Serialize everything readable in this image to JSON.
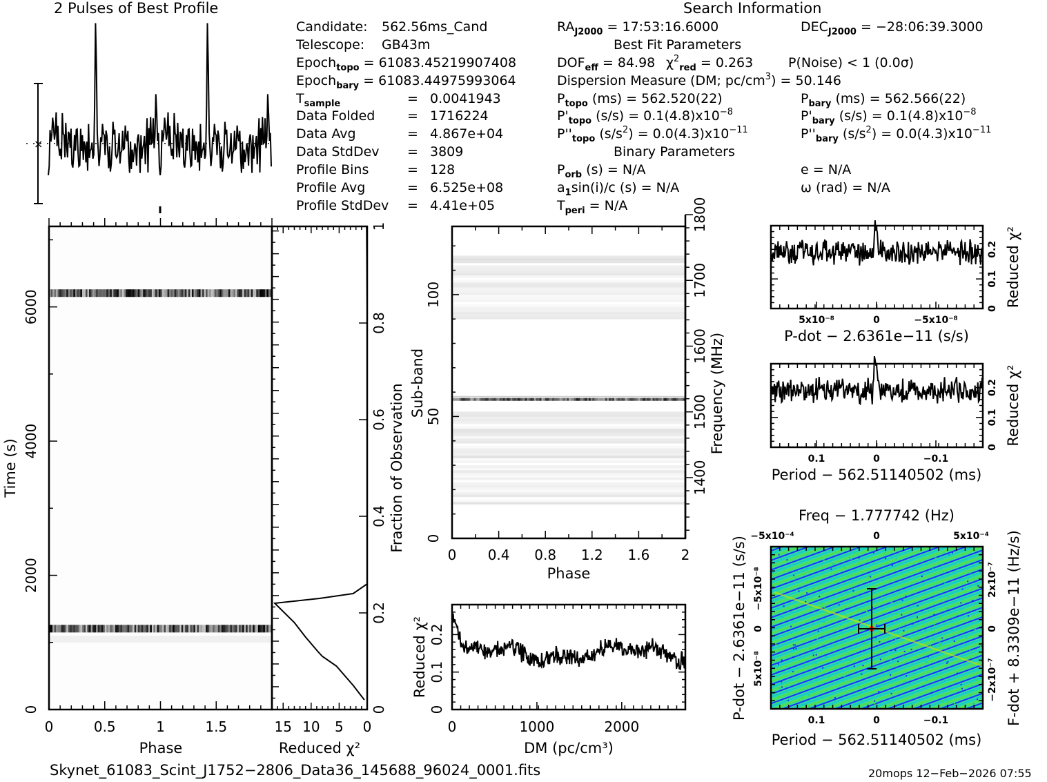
{
  "profile_title": "2 Pulses of Best Profile",
  "search_info_title": "Search Information",
  "info": {
    "candidate": {
      "label": "Candidate:",
      "value": "562.56ms_Cand"
    },
    "telescope": {
      "label": "Telescope:",
      "value": "GB43m"
    },
    "epoch_topo": {
      "label": "Epoch",
      "sub": "topo",
      "value": "= 61083.45219907408"
    },
    "epoch_bary": {
      "label": "Epoch",
      "sub": "bary",
      "value": "= 61083.44975993064"
    },
    "t_sample": {
      "label": "T",
      "sub": "sample",
      "value": "0.0041943"
    },
    "data_folded": {
      "label": "Data Folded",
      "value": "1716224"
    },
    "data_avg": {
      "label": "Data Avg",
      "value": "4.867e+04"
    },
    "data_stddev": {
      "label": "Data StdDev",
      "value": "3809"
    },
    "profile_bins": {
      "label": "Profile Bins",
      "value": "128"
    },
    "profile_avg": {
      "label": "Profile Avg",
      "value": "6.525e+08"
    },
    "profile_stddev": {
      "label": "Profile StdDev",
      "value": "4.41e+05"
    },
    "equals": "="
  },
  "search": {
    "ra": {
      "label": "RA",
      "sub": "J2000",
      "value": "= 17:53:16.6000"
    },
    "dec": {
      "label": "DEC",
      "sub": "J2000",
      "value": "= −28:06:39.3000"
    },
    "best_fit_title": "Best Fit Parameters",
    "dof": {
      "label": "DOF",
      "sub": "eff",
      "value": "= 84.98"
    },
    "chi2": {
      "label": "χ",
      "sup": "2",
      "sub": "red",
      "value": "= 0.263"
    },
    "p_noise": "P(Noise) < 1   (0.0σ)",
    "dm": {
      "label": "Dispersion Measure (DM; pc/cm",
      "sup": "3",
      "value": ") = 50.146"
    },
    "p_topo": {
      "label": "P",
      "sub": "topo",
      "value": "(ms) =  562.520(22)"
    },
    "p_bary": {
      "label": "P",
      "sub": "bary",
      "value": "(ms) =  562.566(22)"
    },
    "pd_topo": {
      "label": "P'",
      "sub": "topo",
      "value": "(s/s) =  0.1(4.8)x10",
      "sup": "−8"
    },
    "pd_bary": {
      "label": "P'",
      "sub": "bary",
      "value": "(s/s) =  0.1(4.8)x10",
      "sup": "−8"
    },
    "pdd_topo": {
      "label": "P''",
      "sub": "topo",
      "value_a": "(s/s",
      "sup_a": "2",
      "value_b": ") = 0.0(4.3)x10",
      "sup": "−11"
    },
    "pdd_bary": {
      "label": "P''",
      "sub": "bary",
      "value_a": "(s/s",
      "sup_a": "2",
      "value_b": ") = 0.0(4.3)x10",
      "sup": "−11"
    },
    "binary_title": "Binary Parameters",
    "p_orb": {
      "label": "P",
      "sub": "orb",
      "value": "(s) = N/A"
    },
    "a1sini": {
      "label": "a",
      "sub": "1",
      "value": "sin(i)/c (s) = N/A"
    },
    "t_peri": {
      "label": "T",
      "sub": "peri",
      "value": "= N/A"
    },
    "ecc": "e = N/A",
    "omega": "ω (rad) = N/A"
  },
  "footer": {
    "filename": "Skynet_61083_Scint_J1752−2806_Data36_145688_96024_0001.fits",
    "stamp": "20mops 12−Feb−2026 07:55"
  },
  "chart_data": [
    {
      "id": "profile",
      "type": "line",
      "title": "2 Pulses of Best Profile",
      "xlim": [
        0,
        2
      ],
      "peaks_phase": [
        0.42,
        1.42
      ],
      "secondary_peaks_phase": [
        0.97,
        1.97
      ]
    },
    {
      "id": "time_phase",
      "type": "heatmap",
      "xlabel": "Phase",
      "ylabel": "Time (s)",
      "xticks": [
        "0",
        "0.5",
        "1",
        "1.5"
      ],
      "yticks": [
        "0",
        "2000",
        "4000",
        "6000"
      ],
      "xlim": [
        0,
        2
      ],
      "ylim": [
        0,
        7200
      ],
      "bright_bands_time_s": [
        1200,
        6200
      ]
    },
    {
      "id": "time_chi2",
      "type": "line",
      "xlabel": "Reduced χ²",
      "ylabel": "Fraction of Observation",
      "xticks": [
        "15",
        "10",
        "5",
        "0"
      ],
      "yticks": [
        "0",
        "0.2",
        "0.4",
        "0.6",
        "0.8",
        "1"
      ],
      "xlim": [
        17,
        0
      ],
      "ylim": [
        0,
        1
      ],
      "points": [
        [
          0.5,
          0.02
        ],
        [
          2.5,
          0.05
        ],
        [
          5.5,
          0.09
        ],
        [
          8,
          0.11
        ],
        [
          8.8,
          0.12
        ],
        [
          11,
          0.15
        ],
        [
          13,
          0.18
        ],
        [
          16.5,
          0.22
        ],
        [
          8.5,
          0.23
        ],
        [
          2.5,
          0.24
        ],
        [
          0,
          0.26
        ],
        [
          0,
          0.84
        ],
        [
          0.05,
          0.92
        ],
        [
          0.1,
          1.0
        ]
      ]
    },
    {
      "id": "subband_phase",
      "type": "heatmap",
      "xlabel": "Phase",
      "ylabel": "Sub-band",
      "y2label": "Frequency (MHz)",
      "xticks": [
        "0",
        "0.4",
        "0.8",
        "1.2",
        "1.6",
        "2"
      ],
      "yticks": [
        "0",
        "50",
        "100"
      ],
      "y2ticks": [
        "1400",
        "1500",
        "1600",
        "1700",
        "1800"
      ],
      "xlim": [
        0,
        2
      ],
      "ylim": [
        0,
        128
      ],
      "bright_subband": 57
    },
    {
      "id": "dm_chi2",
      "type": "line",
      "xlabel": "DM (pc/cm³)",
      "ylabel": "Reduced χ²",
      "xticks": [
        "0",
        "1000",
        "2000"
      ],
      "yticks": [
        "0",
        "0.1",
        "0.2"
      ],
      "xlim": [
        0,
        2750
      ],
      "ylim": [
        0,
        0.28
      ],
      "peak_dm": 50,
      "peak_value": 0.26,
      "baseline": 0.15
    },
    {
      "id": "pdot_chi2",
      "type": "line",
      "xlabel": "P-dot − 2.6361e−11 (s/s)",
      "ylabel": "Reduced χ²",
      "xticks": [
        "5x10⁻⁸",
        "0",
        "−5x10⁻⁸"
      ],
      "yticks": [
        "0",
        "0.1",
        "0.2"
      ],
      "ylim": [
        0,
        0.28
      ],
      "baseline": 0.19,
      "peak_value": 0.25
    },
    {
      "id": "period_chi2",
      "type": "line",
      "xlabel": "Period − 562.51140502 (ms)",
      "ylabel": "Reduced χ²",
      "xticks": [
        "0.1",
        "0",
        "−0.1"
      ],
      "yticks": [
        "0",
        "0.1",
        "0.2"
      ],
      "ylim": [
        0,
        0.28
      ],
      "baseline": 0.19,
      "peak_value": 0.25
    },
    {
      "id": "p_pdot_plane",
      "type": "heatmap",
      "title": "Freq − 1.777742 (Hz)",
      "xlabel": "Period − 562.51140502 (ms)",
      "ylabel": "P-dot − 2.6361e−11 (s/s)",
      "y2label": "F-dot + 8.3309e−11 (Hz/s)",
      "xticks": [
        "0.1",
        "0",
        "−0.1"
      ],
      "x2ticks": [
        "−5x10⁻⁴",
        "0",
        "5x10⁻⁴"
      ],
      "yticks": [
        "−5x10⁻⁸",
        "0",
        "5x10⁻⁸"
      ],
      "y2ticks": [
        "2x10⁻⁷",
        "0",
        "−2x10⁻⁷"
      ],
      "colors": [
        "#1a1aff",
        "#00c8c8",
        "#33dd33",
        "#c8e600",
        "#ff3300"
      ]
    }
  ]
}
